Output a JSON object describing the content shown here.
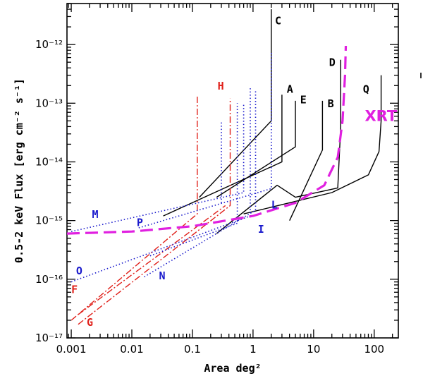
{
  "chart_data": {
    "type": "line",
    "title": "",
    "xlabel": "Area deg²",
    "ylabel": "0.5-2 keV Flux  [erg cm⁻² s⁻¹]",
    "xscale": "log",
    "yscale": "log",
    "xlim": [
      0.00085,
      250
    ],
    "ylim": [
      1e-17,
      5e-12
    ],
    "x_ticks": [
      {
        "value": 0.001,
        "label": "0.001"
      },
      {
        "value": 0.01,
        "label": "0.01"
      },
      {
        "value": 0.1,
        "label": "0.1"
      },
      {
        "value": 1,
        "label": "1"
      },
      {
        "value": 10,
        "label": "10"
      },
      {
        "value": 100,
        "label": "100"
      }
    ],
    "y_ticks": [
      {
        "value": 1e-17,
        "label": "10⁻¹⁷"
      },
      {
        "value": 1e-16,
        "label": "10⁻¹⁶"
      },
      {
        "value": 1e-15,
        "label": "10⁻¹⁵"
      },
      {
        "value": 1e-14,
        "label": "10⁻¹⁴"
      },
      {
        "value": 1e-13,
        "label": "10⁻¹³"
      },
      {
        "value": 1e-12,
        "label": "10⁻¹²"
      }
    ],
    "colors": {
      "black": "#000000",
      "red": "#e0201a",
      "blue": "#1a1acc",
      "magenta": "#e020e0"
    },
    "series": [
      {
        "name": "C",
        "color": "black",
        "style": "solid",
        "label_pos": [
          2.3,
          2.2e-12
        ],
        "points": [
          [
            0.13,
            2.5e-15
          ],
          [
            2.0,
            5e-14
          ],
          [
            2.0,
            4e-12
          ]
        ]
      },
      {
        "name": "A",
        "color": "black",
        "style": "solid",
        "label_pos": [
          3.6,
          1.5e-13
        ],
        "points": [
          [
            0.033,
            1.2e-15
          ],
          [
            3.0,
            1e-14
          ],
          [
            3.0,
            1.4e-13
          ]
        ]
      },
      {
        "name": "E",
        "color": "black",
        "style": "solid",
        "label_pos": [
          6.0,
          1e-13
        ],
        "points": [
          [
            0.25,
            2.5e-15
          ],
          [
            5.0,
            1.8e-14
          ],
          [
            5.0,
            1.1e-13
          ]
        ]
      },
      {
        "name": "B",
        "color": "black",
        "style": "solid",
        "label_pos": [
          17,
          8.5e-14
        ],
        "points": [
          [
            4.0,
            1e-15
          ],
          [
            14,
            1.6e-14
          ],
          [
            14,
            1.1e-13
          ]
        ]
      },
      {
        "name": "D",
        "color": "black",
        "style": "solid",
        "label_pos": [
          18,
          4.3e-13
        ],
        "points": [
          [
            0.25,
            6e-16
          ],
          [
            2.5,
            4e-15
          ],
          [
            5.0,
            2.5e-15
          ],
          [
            25,
            3.6e-15
          ],
          [
            28,
            4e-14
          ],
          [
            28,
            5.5e-13
          ]
        ]
      },
      {
        "name": "Q",
        "color": "black",
        "style": "solid",
        "label_pos": [
          65,
          1.5e-13
        ],
        "points": [
          [
            0.7,
            1.3e-15
          ],
          [
            20,
            3e-15
          ],
          [
            80,
            6e-15
          ],
          [
            120,
            1.5e-14
          ],
          [
            130,
            5e-14
          ],
          [
            130,
            3e-13
          ]
        ]
      },
      {
        "name": "H",
        "color": "red",
        "style": "dashdot",
        "label_pos": [
          0.26,
          1.7e-13
        ],
        "points": [
          [
            0.0013,
            1.7e-17
          ],
          [
            0.42,
            1.8e-15
          ],
          [
            0.42,
            1.2e-13
          ]
        ]
      },
      {
        "name": "F",
        "color": "red",
        "style": "dashdot",
        "label_pos": [
          0.001,
          5.8e-17
        ],
        "points": [
          [
            0.001,
            2e-17
          ],
          [
            0.12,
            1.3e-15
          ],
          [
            0.12,
            1.4e-13
          ]
        ]
      },
      {
        "name": "G",
        "color": "red",
        "style": "dashdot",
        "label_pos": [
          0.0018,
          1.6e-17
        ],
        "points": [
          [
            0.0013,
            2.5e-17
          ],
          [
            0.35,
            1.8e-15
          ]
        ]
      },
      {
        "name": "M",
        "color": "blue",
        "style": "dotted",
        "label_pos": [
          0.0022,
          1.1e-15
        ],
        "points": [
          [
            0.001,
            6.5e-16
          ],
          [
            0.7,
            3e-15
          ],
          [
            0.7,
            1e-13
          ]
        ]
      },
      {
        "name": "P",
        "color": "blue",
        "style": "dotted",
        "label_pos": [
          0.012,
          8e-16
        ],
        "points": [
          [
            0.013,
            7.5e-16
          ],
          [
            2.0,
            3.5e-15
          ],
          [
            2.0,
            7.5e-13
          ]
        ]
      },
      {
        "name": "O",
        "color": "blue",
        "style": "dotted",
        "label_pos": [
          0.0012,
          1.2e-16
        ],
        "points": [
          [
            0.001,
            9e-17
          ],
          [
            0.9,
            1.2e-15
          ],
          [
            0.9,
            1.8e-13
          ]
        ]
      },
      {
        "name": "N",
        "color": "blue",
        "style": "dotted",
        "label_pos": [
          0.028,
          1e-16
        ],
        "points": [
          [
            0.016,
            1.1e-16
          ],
          [
            1.1,
            1.5e-15
          ],
          [
            1.1,
            1.6e-13
          ]
        ]
      },
      {
        "name": "I",
        "color": "blue",
        "style": "dotted",
        "label_pos": [
          1.2,
          6.2e-16
        ],
        "points": [
          [
            0.02,
            2.5e-16
          ],
          [
            0.55,
            9e-16
          ],
          [
            0.55,
            1e-13
          ]
        ]
      },
      {
        "name": "L",
        "color": "blue",
        "style": "dotted",
        "label_pos": [
          2.0,
          1.6e-15
        ],
        "points": [
          [
            0.3,
            2e-15
          ],
          [
            0.3,
            5e-14
          ]
        ]
      },
      {
        "name": "XRT",
        "color": "magenta",
        "style": "longdash",
        "label_pos": [
          70,
          5e-14
        ],
        "points": [
          [
            0.00085,
            6e-16
          ],
          [
            0.01,
            6.5e-16
          ],
          [
            0.1,
            8e-16
          ],
          [
            1,
            1.2e-15
          ],
          [
            5,
            2e-15
          ],
          [
            15,
            4e-15
          ],
          [
            25,
            1.2e-14
          ],
          [
            30,
            5e-14
          ],
          [
            33,
            3e-13
          ],
          [
            34,
            9.5e-13
          ]
        ]
      }
    ]
  }
}
